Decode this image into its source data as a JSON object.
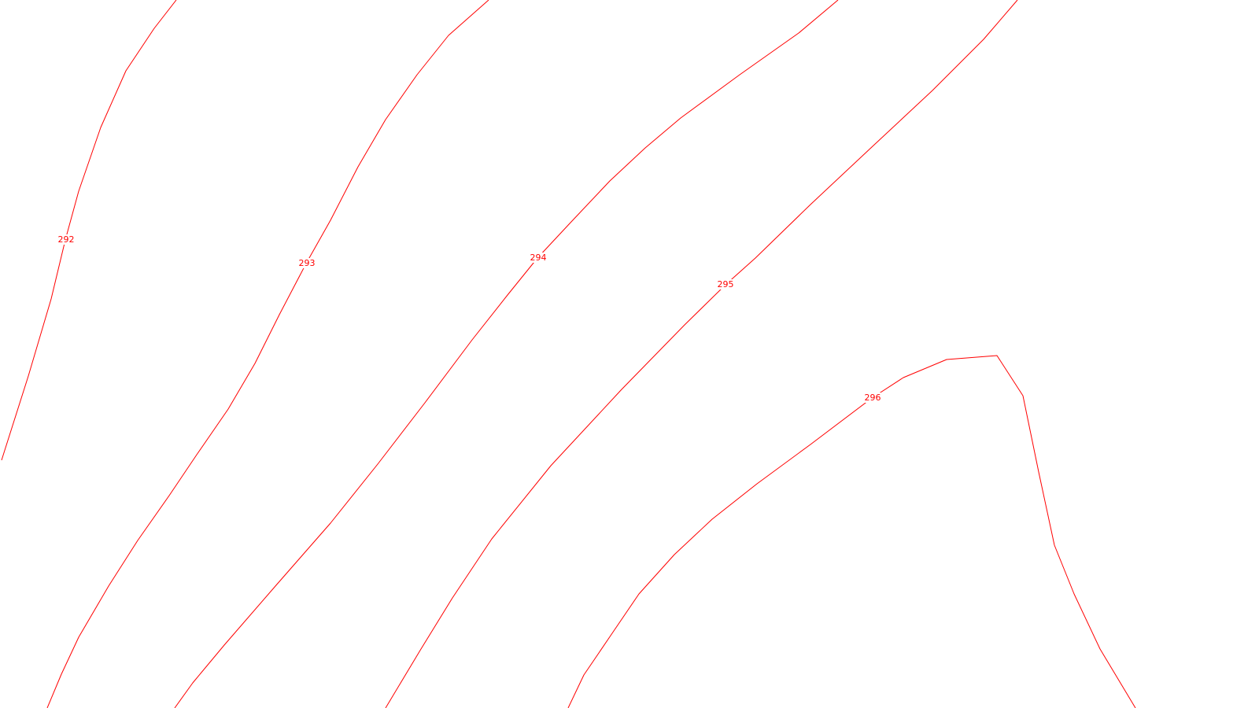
{
  "map": {
    "line_color": "#ff0000",
    "background_color": "#ffffff",
    "contours": [
      {
        "label": "292"
      },
      {
        "label": "293"
      },
      {
        "label": "294"
      },
      {
        "label": "295"
      },
      {
        "label": "296"
      }
    ]
  }
}
